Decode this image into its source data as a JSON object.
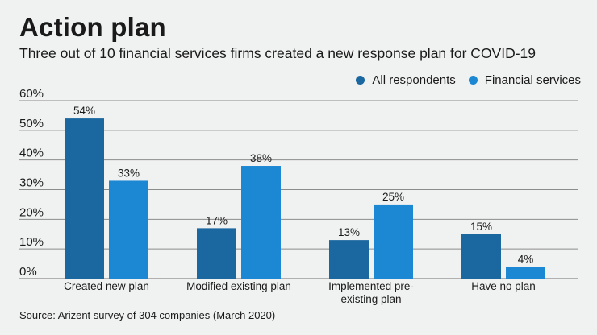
{
  "header": {
    "title": "Action plan",
    "subtitle": "Three out of 10 financial services firms created a new response plan for COVID-19"
  },
  "footer": {
    "source": "Source: Arizent survey of 304 companies (March 2020)"
  },
  "chart_data": {
    "type": "bar",
    "title": "Action plan",
    "subtitle": "Three out of 10 financial services firms created a new response plan for COVID-19",
    "xlabel": "",
    "ylabel": "",
    "ylim": [
      0,
      60
    ],
    "yticks": [
      0,
      10,
      20,
      30,
      40,
      50,
      60
    ],
    "ytick_labels": [
      "0%",
      "10%",
      "20%",
      "30%",
      "40%",
      "50%",
      "60%"
    ],
    "grid": true,
    "legend_position": "top-right",
    "categories": [
      [
        "Created new plan"
      ],
      [
        "Modified existing plan"
      ],
      [
        "Implemented pre-",
        "existing plan"
      ],
      [
        "Have no plan"
      ]
    ],
    "series": [
      {
        "name": "All respondents",
        "color": "#1b67a0",
        "values": [
          54,
          17,
          13,
          15
        ],
        "labels": [
          "54%",
          "17%",
          "13%",
          "15%"
        ]
      },
      {
        "name": "Financial services",
        "color": "#1c87d3",
        "values": [
          33,
          38,
          25,
          4
        ],
        "labels": [
          "33%",
          "38%",
          "25%",
          "4%"
        ]
      }
    ]
  }
}
